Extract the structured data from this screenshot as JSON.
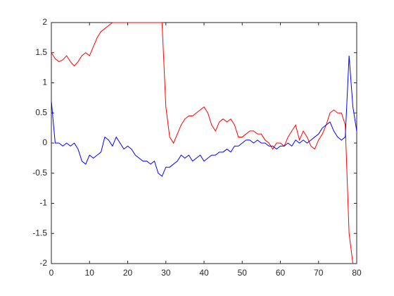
{
  "chart_data": {
    "type": "line",
    "x": [
      0,
      1,
      2,
      3,
      4,
      5,
      6,
      7,
      8,
      9,
      10,
      11,
      12,
      13,
      14,
      15,
      16,
      17,
      18,
      19,
      20,
      21,
      22,
      23,
      24,
      25,
      26,
      27,
      28,
      29,
      30,
      31,
      32,
      33,
      34,
      35,
      36,
      37,
      38,
      39,
      40,
      41,
      42,
      43,
      44,
      45,
      46,
      47,
      48,
      49,
      50,
      51,
      52,
      53,
      54,
      55,
      56,
      57,
      58,
      59,
      60,
      61,
      62,
      63,
      64,
      65,
      66,
      67,
      68,
      69,
      70,
      71,
      72,
      73,
      74,
      75,
      76,
      77,
      78,
      79,
      80
    ],
    "series": [
      {
        "color": "#ff0000",
        "values": [
          1.5,
          1.4,
          1.35,
          1.38,
          1.45,
          1.35,
          1.28,
          1.35,
          1.45,
          1.5,
          1.45,
          1.6,
          1.75,
          1.85,
          1.9,
          1.95,
          2,
          2,
          2,
          2,
          2,
          2,
          2,
          2,
          2,
          2,
          2,
          2,
          2,
          2,
          0.6,
          0.1,
          0,
          0.15,
          0.3,
          0.4,
          0.45,
          0.45,
          0.5,
          0.55,
          0.6,
          0.5,
          0.3,
          0.2,
          0.35,
          0.4,
          0.35,
          0.4,
          0.3,
          0.1,
          0.1,
          0.15,
          0.2,
          0.2,
          0.15,
          0.15,
          0.05,
          0,
          -0.1,
          0,
          0,
          -0.05,
          0.1,
          0.2,
          0.3,
          0.05,
          0.2,
          0.1,
          -0.05,
          -0.1,
          0.05,
          0.15,
          0.3,
          0.5,
          0.55,
          0.5,
          0.5,
          0.3,
          -1.5,
          -2,
          null
        ]
      },
      {
        "color": "#0000ff",
        "values": [
          0.7,
          0,
          0,
          -0.05,
          0,
          -0.05,
          0,
          -0.1,
          -0.3,
          -0.35,
          -0.2,
          -0.25,
          -0.2,
          -0.15,
          0.1,
          0.05,
          -0.05,
          0.1,
          0,
          -0.1,
          -0.05,
          -0.1,
          -0.2,
          -0.25,
          -0.3,
          -0.3,
          -0.35,
          -0.3,
          -0.5,
          -0.55,
          -0.4,
          -0.4,
          -0.35,
          -0.3,
          -0.2,
          -0.25,
          -0.2,
          -0.3,
          -0.25,
          -0.2,
          -0.3,
          -0.25,
          -0.2,
          -0.2,
          -0.15,
          -0.15,
          -0.1,
          -0.15,
          -0.05,
          -0.05,
          0,
          0.05,
          0.05,
          0,
          0.05,
          0,
          0,
          -0.05,
          -0.05,
          -0.1,
          -0.05,
          -0.05,
          0,
          -0.05,
          0.05,
          0,
          0.05,
          0,
          0.05,
          0.1,
          0.15,
          0.25,
          0.3,
          0.35,
          0.2,
          0.1,
          0.05,
          0.1,
          1.45,
          0.6,
          0.2
        ]
      }
    ],
    "xlim": [
      0,
      80
    ],
    "xticks": [
      0,
      10,
      20,
      30,
      40,
      50,
      60,
      70,
      80
    ],
    "ylim": [
      -2,
      2
    ],
    "yticks": [
      -2,
      -1.5,
      -1,
      -0.5,
      0,
      0.5,
      1,
      1.5,
      2
    ],
    "grid": false
  }
}
